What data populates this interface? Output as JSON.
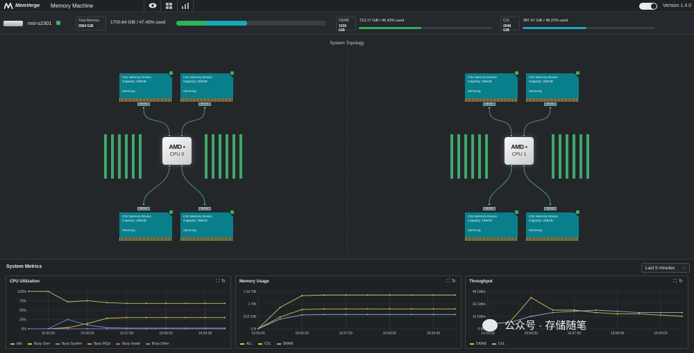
{
  "header": {
    "brand": "MemVerge",
    "title": "Memory Machine",
    "icons": [
      "eye-icon",
      "grid-icon",
      "bar-chart-icon"
    ],
    "version": "Version 1.4.0"
  },
  "status": {
    "server": "msi-s2301",
    "total_memory_label": "Total Memory",
    "total_memory_value": "3584 GiB",
    "memory_used_text": "1700.64 GiB / 47.45% used",
    "memory_used_fraction": 0.4745,
    "dram": {
      "label": "DRAM",
      "capacity": "1536 GiB",
      "used_text": "713.17 GiB / 46.43% used",
      "fraction": 0.4643
    },
    "cxl": {
      "label": "CXL",
      "capacity": "2048 GiB",
      "used_text": "987.47 GiB / 48.22% used",
      "fraction": 0.4822
    },
    "colors": {
      "dram": "#2fb35a",
      "cxl": "#19a9bd"
    }
  },
  "topology": {
    "title": "System Topology",
    "cpus": [
      {
        "brand": "AMD",
        "label": "CPU 0"
      },
      {
        "brand": "AMD",
        "label": "CPU 1"
      }
    ],
    "device": {
      "name": "CXL Memory Device",
      "capacity": "Capacity: 256GB",
      "vendor": "Samsung",
      "port": "8X CXL"
    }
  },
  "metrics": {
    "title": "System Metrics",
    "range": "Last 5 minutes",
    "panels": {
      "cpu": {
        "title": "CPU Utilization",
        "y_ticks": [
          "100%",
          "75%",
          "50%",
          "25%",
          "0%"
        ],
        "x_ticks": [
          "16:55:00",
          "16:56:00",
          "16:57:00",
          "16:58:00",
          "16:59:00"
        ],
        "legend": [
          "Idle",
          "Busy User",
          "Busy System",
          "Busy IRQs",
          "Busy Iowait",
          "Busy Other"
        ]
      },
      "memory": {
        "title": "Memory Usage",
        "y_ticks": [
          "1.50 TiB",
          "1 TiB",
          "512 GiB",
          "0 B"
        ],
        "x_ticks": [
          "16:55:00",
          "16:56:00",
          "16:57:00",
          "16:58:00",
          "16:59:00"
        ],
        "legend": [
          "ALL",
          "CXL",
          "DRAM"
        ]
      },
      "throughput": {
        "title": "Throughput",
        "y_ticks": [
          "48 GiB/s",
          "32 GiB/s",
          "16 GiB/s",
          "0 B/s"
        ],
        "x_ticks": [
          "16:55:00",
          "16:56:00",
          "16:57:00",
          "16:58:00",
          "16:59:00"
        ],
        "legend": [
          "DRAM",
          "CXL"
        ]
      }
    },
    "series_colors": {
      "idle": "#b6c36a",
      "busy_user": "#d6c447",
      "busy_system": "#6c8fd6",
      "busy_irqs": "#d08a3a",
      "busy_iowait": "#c86a6a",
      "busy_other": "#8a7bd0",
      "all": "#c7c96a",
      "cxl": "#d6c447",
      "dram": "#8fb0d8"
    }
  },
  "chart_data": [
    {
      "type": "line",
      "title": "CPU Utilization",
      "x": [
        "16:54:30",
        "16:55:00",
        "16:55:30",
        "16:56:00",
        "16:56:30",
        "16:57:00",
        "16:57:30",
        "16:58:00",
        "16:58:30",
        "16:59:00",
        "16:59:30"
      ],
      "ylim": [
        0,
        100
      ],
      "series": [
        {
          "name": "Idle",
          "values": [
            100,
            100,
            72,
            75,
            70,
            68,
            68,
            68,
            68,
            68,
            68
          ]
        },
        {
          "name": "Busy User",
          "values": [
            0,
            0,
            3,
            14,
            28,
            30,
            30,
            30,
            30,
            30,
            30
          ]
        },
        {
          "name": "Busy System",
          "values": [
            0,
            0,
            25,
            10,
            3,
            2,
            2,
            2,
            2,
            2,
            2
          ]
        },
        {
          "name": "Busy IRQs",
          "values": [
            0,
            0,
            0,
            0,
            0,
            0,
            0,
            0,
            0,
            0,
            0
          ]
        },
        {
          "name": "Busy Iowait",
          "values": [
            0,
            0,
            0,
            0,
            0,
            0,
            0,
            0,
            0,
            0,
            0
          ]
        },
        {
          "name": "Busy Other",
          "values": [
            0,
            0,
            0,
            0,
            0,
            0,
            0,
            0,
            0,
            0,
            0
          ]
        }
      ]
    },
    {
      "type": "line",
      "title": "Memory Usage",
      "x": [
        "16:55:00",
        "16:55:30",
        "16:56:00",
        "16:56:30",
        "16:57:00",
        "16:57:30",
        "16:58:00",
        "16:58:30",
        "16:59:00",
        "16:59:30"
      ],
      "ylim": [
        0,
        1.75
      ],
      "series": [
        {
          "name": "ALL",
          "values": [
            0,
            1.0,
            1.55,
            1.58,
            1.58,
            1.58,
            1.58,
            1.58,
            1.58,
            1.58
          ]
        },
        {
          "name": "CXL",
          "values": [
            0,
            0.55,
            0.9,
            0.93,
            0.93,
            0.93,
            0.93,
            0.93,
            0.93,
            0.93
          ]
        },
        {
          "name": "DRAM",
          "values": [
            0,
            0.45,
            0.65,
            0.67,
            0.67,
            0.67,
            0.67,
            0.67,
            0.67,
            0.67
          ]
        }
      ]
    },
    {
      "type": "line",
      "title": "Throughput",
      "x": [
        "16:55:00",
        "16:55:30",
        "16:56:00",
        "16:56:30",
        "16:57:00",
        "16:57:30",
        "16:58:00",
        "16:58:30",
        "16:59:00",
        "16:59:30"
      ],
      "ylim": [
        0,
        60
      ],
      "series": [
        {
          "name": "DRAM",
          "values": [
            8,
            10,
            50,
            30,
            30,
            26,
            24,
            24,
            22,
            20
          ]
        },
        {
          "name": "CXL",
          "values": [
            8,
            10,
            20,
            26,
            28,
            30,
            28,
            26,
            26,
            26
          ]
        }
      ]
    }
  ]
}
